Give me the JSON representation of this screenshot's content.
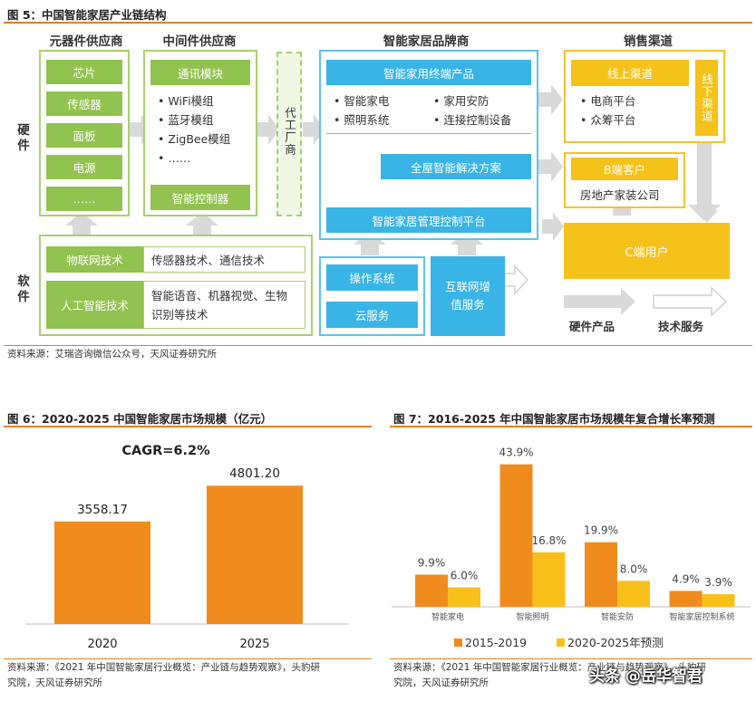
{
  "fig5": {
    "title": "图 5：中国智能家居产业链结构",
    "headers": {
      "component": "元器件供应商",
      "middle": "中间件供应商",
      "brand": "智能家居品牌商",
      "channel": "销售渠道"
    },
    "side_labels": {
      "hardware": "硬件",
      "software": "软件"
    },
    "components": [
      "芯片",
      "传感器",
      "面板",
      "电源",
      "……"
    ],
    "middle": {
      "comm_module": "通讯模块",
      "modules": [
        "WiFi模组",
        "蓝牙模组",
        "ZigBee模组",
        "……"
      ],
      "controller": "智能控制器"
    },
    "oem": "代工厂商",
    "brand": {
      "terminal": "智能家用终端产品",
      "items_left": [
        "智能家电",
        "照明系统"
      ],
      "items_right": [
        "家用安防",
        "连接控制设备"
      ],
      "whole_house": "全屋智能解决方案",
      "platform": "智能家居管理控制平台"
    },
    "software": [
      {
        "name": "物联网技术",
        "desc": "传感器技术、通信技术"
      },
      {
        "name": "人工智能技术",
        "desc": "智能语音、机器视觉、生物识别等技术"
      }
    ],
    "os": "操作系统",
    "cloud": "云服务",
    "internet_vas": "互联网增值服务",
    "channel": {
      "online": "线上渠道",
      "online_items": [
        "电商平台",
        "众筹平台"
      ],
      "offline": "线下渠道",
      "b_client": "B端客户",
      "b_item": "房地产家装公司",
      "c_user": "C端用户"
    },
    "legend": {
      "hardware_product": "硬件产品",
      "tech_service": "技术服务"
    },
    "source": "资料来源：艾瑞咨询微信公众号，天风证券研究所"
  },
  "fig6": {
    "title": "图 6：2020-2025 中国智能家居市场规模（亿元）",
    "annotation": "CAGR=6.2%",
    "source_lines": [
      "资料来源：《2021 年中国智能家居行业概览：产业链与趋势观察》，头豹研",
      "究院，天风证券研究所"
    ]
  },
  "fig7": {
    "title": "图 7：2016-2025 年中国智能家居市场规模年复合增长率预测",
    "source_lines": [
      "资料来源：《2021 年中国智能家居行业概览：产业链与趋势观察》，头豹研",
      "究院，天风证券研究所"
    ]
  },
  "watermark": "头条 @岳华智君",
  "colors": {
    "orange": "#f08c1e",
    "yellow": "#f9c01c",
    "green": "#92c24f",
    "blue": "#39b4e6",
    "gold": "#f5c21b",
    "accent": "#e2801f"
  },
  "chart_data": [
    {
      "type": "bar",
      "categories": [
        "2020",
        "2025"
      ],
      "values": [
        3558.17,
        4801.2
      ],
      "value_labels": [
        "3558.17",
        "4801.20"
      ],
      "title": "",
      "xlabel": "",
      "ylabel": "",
      "ylim": [
        0,
        5500
      ]
    },
    {
      "type": "bar",
      "categories": [
        "智能家电",
        "智能照明",
        "智能安防",
        "智能家居控制系统"
      ],
      "series": [
        {
          "name": "2015-2019",
          "values": [
            9.9,
            43.9,
            19.9,
            4.9
          ],
          "labels": [
            "9.9%",
            "43.9%",
            "19.9%",
            "4.9%"
          ]
        },
        {
          "name": "2020-2025年预测",
          "values": [
            6.0,
            16.8,
            8.0,
            3.9
          ],
          "labels": [
            "6.0%",
            "16.8%",
            "8.0%",
            "3.9%"
          ]
        }
      ],
      "title": "",
      "xlabel": "",
      "ylabel": "",
      "ylim": [
        0,
        48
      ],
      "legend": "bottom"
    }
  ]
}
